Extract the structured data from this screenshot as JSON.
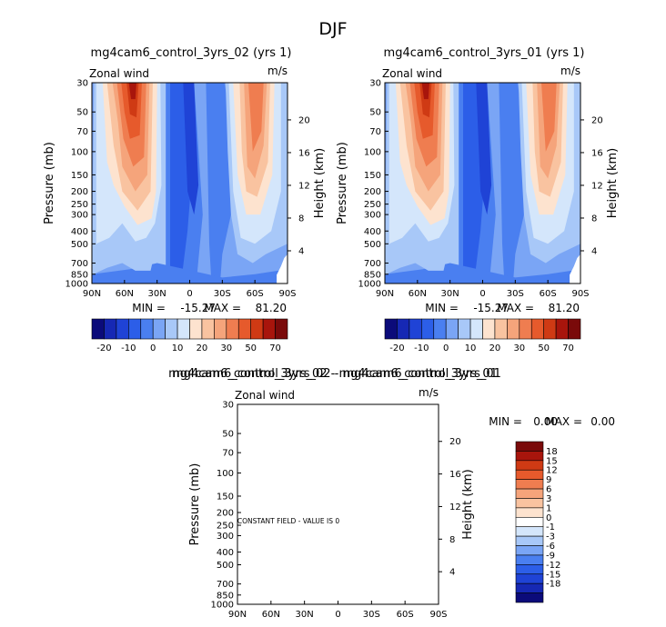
{
  "page_title": "DJF",
  "colors": {
    "panel_scale": [
      "#0b0b7a",
      "#1628b4",
      "#1f43d6",
      "#2c5ee8",
      "#4a7ff0",
      "#7aa5f5",
      "#a8c8f8",
      "#d4e6fb",
      "#fde3cf",
      "#f9c3a0",
      "#f5a47b",
      "#ef7d50",
      "#e65a2c",
      "#cf3a14",
      "#a8150c",
      "#7a0a0a"
    ],
    "diff_scale": [
      "#7a0a0a",
      "#a8150c",
      "#cf3a14",
      "#e65a2c",
      "#ef7d50",
      "#f5a47b",
      "#f9c3a0",
      "#fde3cf",
      "#ffffff",
      "#d4e6fb",
      "#a8c8f8",
      "#7aa5f5",
      "#4a7ff0",
      "#2c5ee8",
      "#1f43d6",
      "#1628b4",
      "#0b0b7a"
    ]
  },
  "chart_data": [
    {
      "type": "heatmap",
      "title": "mg4cam6_control_3yrs_02 (yrs 1)",
      "left_label": "Zonal wind",
      "right_label": "m/s",
      "ylabel": "Pressure (mb)",
      "ylabel_right": "Height (km)",
      "x_ticks": [
        "90N",
        "60N",
        "30N",
        "0",
        "30S",
        "60S",
        "90S"
      ],
      "x_range": [
        90,
        -90
      ],
      "y_ticks": [
        30,
        50,
        70,
        100,
        150,
        200,
        250,
        300,
        400,
        500,
        700,
        850,
        1000
      ],
      "y_range_mb": [
        30,
        1000
      ],
      "height_ticks": [
        4,
        8,
        12,
        16,
        20
      ],
      "min_label": "MIN =",
      "min": "-15.27",
      "max_label": "MAX =",
      "max": "81.20",
      "colorbar_levels": [
        "-20",
        "-10",
        "0",
        "10",
        "20",
        "30",
        "50",
        "70"
      ]
    },
    {
      "type": "heatmap",
      "title": "mg4cam6_control_3yrs_01 (yrs 1)",
      "left_label": "Zonal wind",
      "right_label": "m/s",
      "ylabel": "Pressure (mb)",
      "ylabel_right": "Height (km)",
      "x_ticks": [
        "90N",
        "60N",
        "30N",
        "0",
        "30S",
        "60S",
        "90S"
      ],
      "x_range": [
        90,
        -90
      ],
      "y_ticks": [
        30,
        50,
        70,
        100,
        150,
        200,
        250,
        300,
        400,
        500,
        700,
        850,
        1000
      ],
      "y_range_mb": [
        30,
        1000
      ],
      "height_ticks": [
        4,
        8,
        12,
        16,
        20
      ],
      "min_label": "MIN =",
      "min": "-15.27",
      "max_label": "MAX =",
      "max": "81.20",
      "colorbar_levels": [
        "-20",
        "-10",
        "0",
        "10",
        "20",
        "30",
        "50",
        "70"
      ]
    },
    {
      "type": "heatmap",
      "title": "mg4cam6_control_3yrs_02 - mg4cam6_control_3yrs_01",
      "left_label": "Zonal wind",
      "right_label": "m/s",
      "ylabel": "Pressure (mb)",
      "ylabel_right": "Height (km)",
      "x_ticks": [
        "90N",
        "60N",
        "30N",
        "0",
        "30S",
        "60S",
        "90S"
      ],
      "x_range": [
        90,
        -90
      ],
      "y_ticks": [
        30,
        50,
        70,
        100,
        150,
        200,
        250,
        300,
        400,
        500,
        700,
        850,
        1000
      ],
      "y_range_mb": [
        30,
        1000
      ],
      "height_ticks": [
        4,
        8,
        12,
        16,
        20
      ],
      "min_label": "MIN =",
      "min": "0.00",
      "max_label": "MAX =",
      "max": "0.00",
      "annotation": "CONSTANT FIELD - VALUE IS 0",
      "colorbar_levels": [
        "18",
        "15",
        "12",
        "9",
        "6",
        "3",
        "1",
        "0",
        "-1",
        "-3",
        "-6",
        "-9",
        "-12",
        "-15",
        "-18"
      ]
    }
  ]
}
